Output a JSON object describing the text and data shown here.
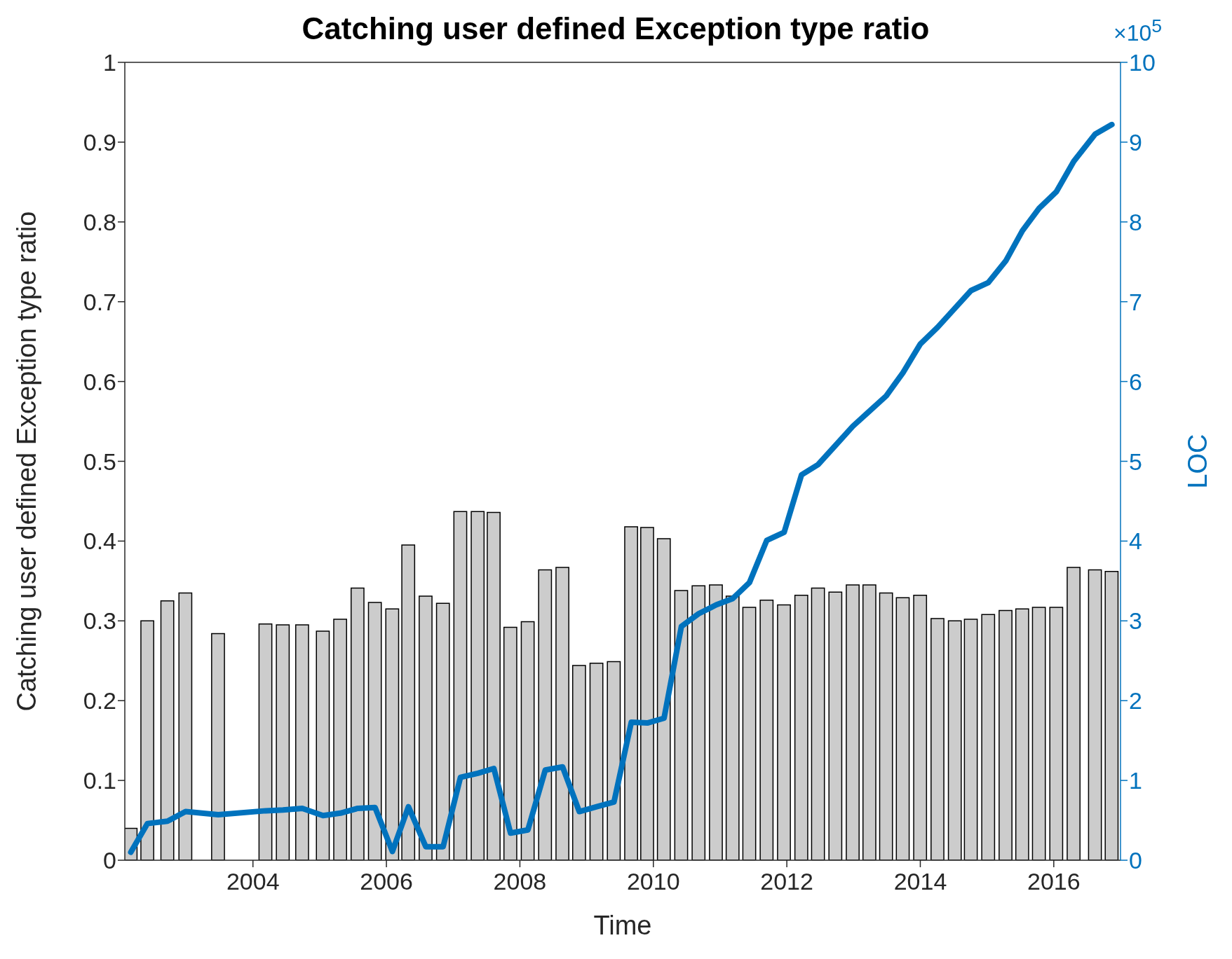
{
  "chart_data": {
    "type": "bar",
    "title": "Catching user defined Exception type ratio",
    "xlabel": "Time",
    "ylabel": "Catching user defined Exception type ratio",
    "y2label": "LOC",
    "annotations": [
      "×10$^{5}$"
    ],
    "x": [
      2002.17,
      2002.42,
      2002.72,
      2002.99,
      2003.48,
      2004.19,
      2004.45,
      2004.74,
      2005.05,
      2005.31,
      2005.57,
      2005.83,
      2006.09,
      2006.33,
      2006.59,
      2006.85,
      2007.11,
      2007.37,
      2007.61,
      2007.86,
      2008.12,
      2008.38,
      2008.64,
      2008.89,
      2009.15,
      2009.41,
      2009.67,
      2009.91,
      2010.16,
      2010.42,
      2010.68,
      2010.94,
      2011.19,
      2011.44,
      2011.7,
      2011.96,
      2012.22,
      2012.47,
      2012.73,
      2012.99,
      2013.24,
      2013.49,
      2013.74,
      2014.0,
      2014.26,
      2014.52,
      2014.76,
      2015.02,
      2015.28,
      2015.53,
      2015.78,
      2016.04,
      2016.3,
      2016.62,
      2016.87
    ],
    "series": [
      {
        "color": "#cccccc",
        "values": [
          0.04,
          0.3,
          0.325,
          0.335,
          0.284,
          0.296,
          0.295,
          0.295,
          0.287,
          0.302,
          0.341,
          0.323,
          0.315,
          0.395,
          0.331,
          0.322,
          0.437,
          0.437,
          0.436,
          0.292,
          0.299,
          0.364,
          0.367,
          0.244,
          0.247,
          0.249,
          0.418,
          0.417,
          0.403,
          0.338,
          0.344,
          0.345,
          0.331,
          0.317,
          0.326,
          0.32,
          0.332,
          0.341,
          0.336,
          0.345,
          0.345,
          0.335,
          0.329,
          0.332,
          0.303,
          0.3,
          0.302,
          0.308,
          0.313,
          0.315,
          0.317,
          0.317,
          0.367,
          0.364,
          0.362
        ]
      },
      {
        "type": "line",
        "axis": "y2",
        "color": "#0072bd",
        "values": [
          0.1,
          0.46,
          0.49,
          0.61,
          0.57,
          0.62,
          0.63,
          0.65,
          0.56,
          0.59,
          0.65,
          0.66,
          0.11,
          0.67,
          0.17,
          0.17,
          1.04,
          1.09,
          1.15,
          0.34,
          0.38,
          1.13,
          1.17,
          0.61,
          0.67,
          0.73,
          1.73,
          1.72,
          1.78,
          2.93,
          3.09,
          3.2,
          3.28,
          3.48,
          4.01,
          4.11,
          4.83,
          4.96,
          5.2,
          5.44,
          5.63,
          5.82,
          6.11,
          6.47,
          6.68,
          6.92,
          7.14,
          7.24,
          7.51,
          7.89,
          8.17,
          8.38,
          8.76,
          9.1,
          9.22
        ]
      }
    ],
    "xlim": [
      2002.08,
      2017.0
    ],
    "xticks": [
      2004,
      2006,
      2008,
      2010,
      2012,
      2014,
      2016
    ],
    "ylim": [
      0,
      1
    ],
    "yticks": [
      0,
      0.1,
      0.2,
      0.3,
      0.4,
      0.5,
      0.6,
      0.7,
      0.8,
      0.9,
      1
    ],
    "y2lim": [
      0,
      10
    ],
    "y2ticks": [
      0,
      1,
      2,
      3,
      4,
      5,
      6,
      7,
      8,
      9,
      10
    ],
    "grid": false,
    "legend": false,
    "marker": "none",
    "line_style": "solid"
  }
}
